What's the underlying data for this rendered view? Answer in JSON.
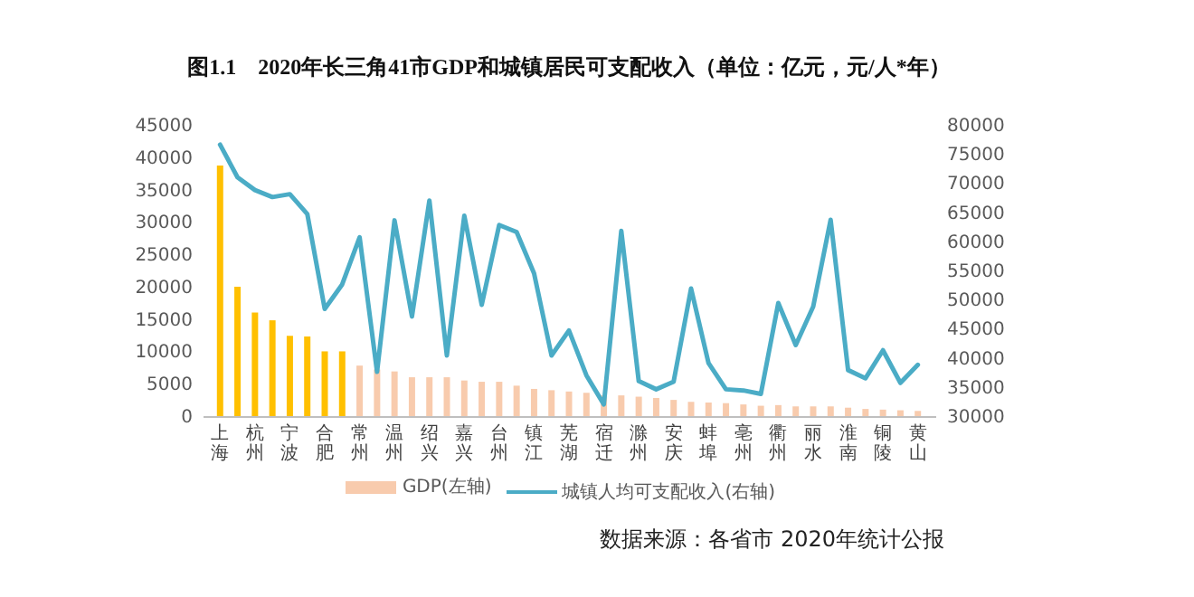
{
  "chart_data": {
    "type": "bar",
    "title": "图1.1　2020年长三角41市GDP和城镇居民可支配收入（单位：亿元，元/人*年）",
    "categories": [
      "上海",
      null,
      "杭州",
      null,
      "宁波",
      null,
      "合肥",
      null,
      "常州",
      null,
      "温州",
      null,
      "绍兴",
      null,
      "嘉兴",
      null,
      "台州",
      null,
      "镇江",
      null,
      "芜湖",
      null,
      "宿迁",
      null,
      "滁州",
      null,
      "安庆",
      null,
      "蚌埠",
      null,
      "亳州",
      null,
      "衢州",
      null,
      "丽水",
      null,
      "淮南",
      null,
      "铜陵",
      null,
      "黄山"
    ],
    "series": [
      {
        "name": "GDP(左轴)",
        "color": "#f8cbad",
        "colors": [
          "#ffc000",
          "#ffc000",
          "#ffc000",
          "#ffc000",
          "#ffc000",
          "#ffc000",
          "#ffc000",
          "#ffc000",
          "#f8cbad",
          "#f8cbad",
          "#f8cbad",
          "#f8cbad",
          "#f8cbad",
          "#f8cbad",
          "#f8cbad",
          "#f8cbad",
          "#f8cbad",
          "#f8cbad",
          "#f8cbad",
          "#f8cbad",
          "#f8cbad",
          "#f8cbad",
          "#f8cbad",
          "#f8cbad",
          "#f8cbad",
          "#f8cbad",
          "#f8cbad",
          "#f8cbad",
          "#f8cbad",
          "#f8cbad",
          "#f8cbad",
          "#f8cbad",
          "#f8cbad",
          "#f8cbad",
          "#f8cbad",
          "#f8cbad",
          "#f8cbad",
          "#f8cbad",
          "#f8cbad",
          "#f8cbad",
          "#f8cbad"
        ],
        "values": [
          38700,
          20000,
          16000,
          14800,
          12400,
          12300,
          10000,
          10000,
          7800,
          7200,
          6900,
          6000,
          6000,
          6000,
          5500,
          5300,
          5300,
          4700,
          4200,
          4000,
          3800,
          3600,
          3200,
          3200,
          3000,
          2800,
          2500,
          2200,
          2100,
          2000,
          1800,
          1600,
          1700,
          1500,
          1500,
          1500,
          1300,
          1100,
          1000,
          900,
          800
        ]
      },
      {
        "name": "城镇人均可支配收入(右轴)",
        "type": "line",
        "axis": "y2",
        "color": "#4bacc6",
        "values": [
          76600,
          71000,
          68800,
          67600,
          68100,
          64700,
          48400,
          52600,
          60700,
          37600,
          63600,
          47100,
          67000,
          40400,
          64400,
          49100,
          62800,
          61600,
          54500,
          40400,
          44700,
          37000,
          32000,
          61800,
          36000,
          34600,
          35900,
          51900,
          39100,
          34600,
          34400,
          33800,
          49400,
          42200,
          48800,
          63700,
          37900,
          36500,
          41300,
          35700,
          38800
        ]
      }
    ],
    "ylim": [
      0,
      45000
    ],
    "yticks": [
      0,
      5000,
      10000,
      15000,
      20000,
      25000,
      30000,
      35000,
      40000,
      45000
    ],
    "y2lim": [
      30000,
      80000
    ],
    "y2ticks": [
      30000,
      35000,
      40000,
      45000,
      50000,
      55000,
      60000,
      65000,
      70000,
      75000,
      80000
    ],
    "legend": "bottom",
    "annotations": [
      "数据来源：各省市 2020年统计公报"
    ]
  }
}
